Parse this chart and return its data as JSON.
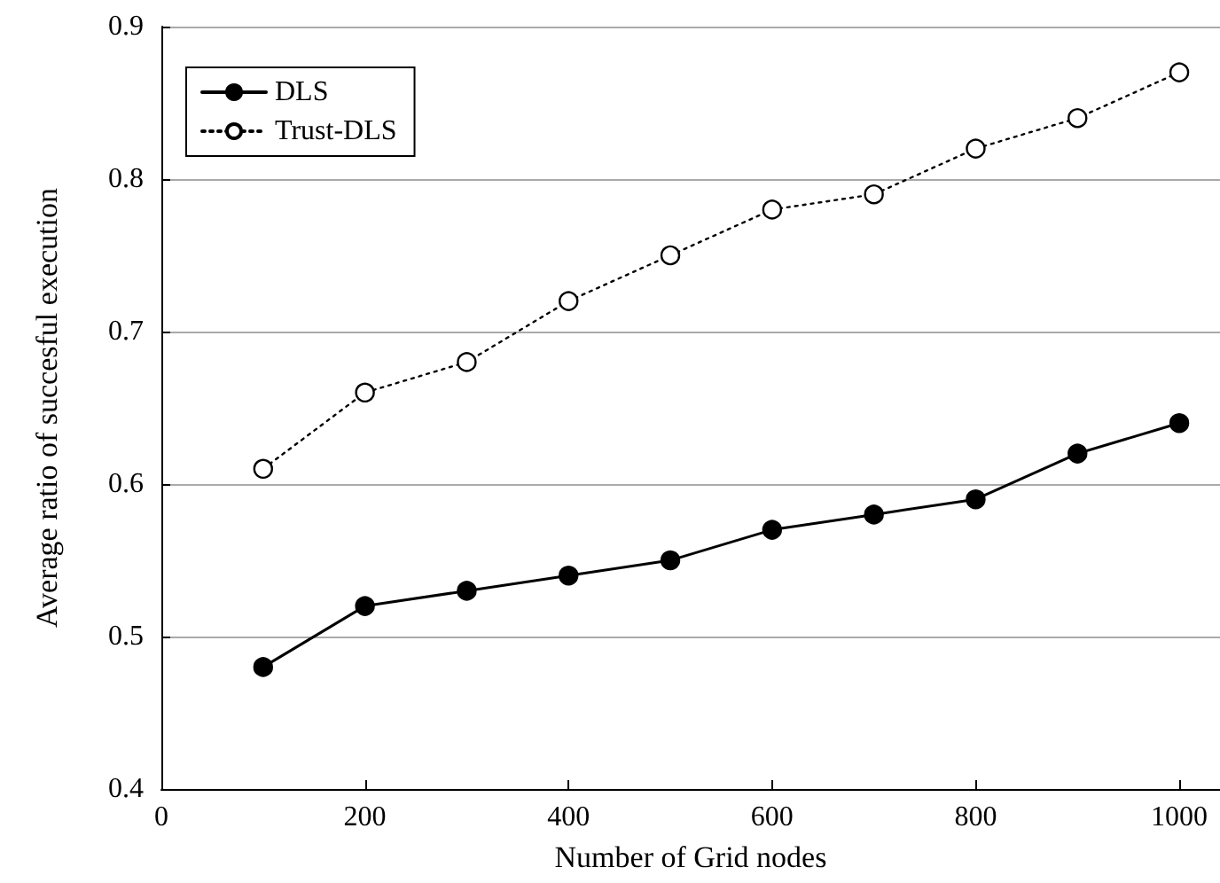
{
  "chart_data": {
    "type": "line",
    "xlabel": "Number of Grid nodes",
    "ylabel": "Average ratio of succesful execution",
    "x": [
      100,
      200,
      300,
      400,
      500,
      600,
      700,
      800,
      900,
      1000
    ],
    "series": [
      {
        "name": "DLS",
        "color": "#000000",
        "values": [
          0.48,
          0.52,
          0.53,
          0.54,
          0.55,
          0.57,
          0.58,
          0.59,
          0.62,
          0.64
        ],
        "marker": "circle",
        "line_style": "solid"
      },
      {
        "name": "Trust-DLS",
        "color": "#000000",
        "values": [
          0.61,
          0.66,
          0.68,
          0.72,
          0.75,
          0.78,
          0.79,
          0.82,
          0.84,
          0.87
        ],
        "marker": "circle",
        "line_style": "dotted"
      }
    ],
    "xlim": [
      0,
      1040
    ],
    "xticks": [
      0,
      200,
      400,
      600,
      800,
      1000
    ],
    "ylim": [
      0.4,
      0.9
    ],
    "yticks": [
      0.4,
      0.5,
      0.6,
      0.7,
      0.8,
      0.9
    ],
    "grid": "y",
    "legend": "top left"
  }
}
